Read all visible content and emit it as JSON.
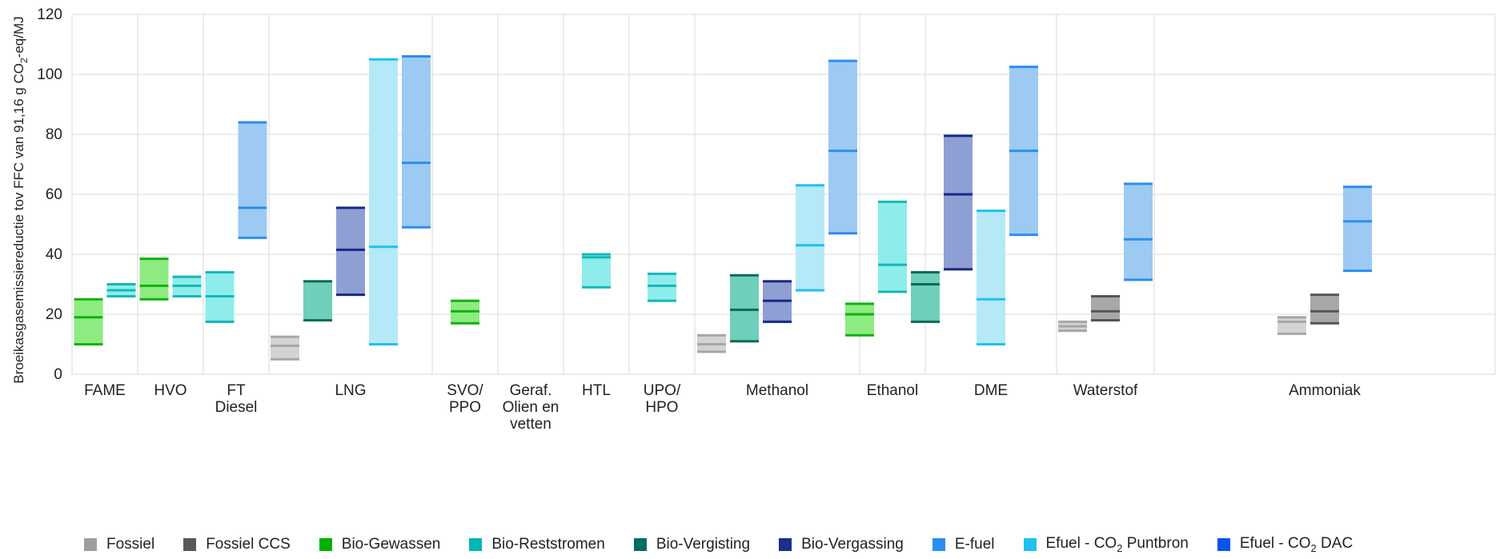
{
  "chart_data": {
    "type": "bar",
    "subtype": "floating-range-bars",
    "ylabel": "Broeikasgasemissiereductie tov FFC van 91,16 g CO2-eq/MJ",
    "ylim": [
      0,
      120
    ],
    "yticks": [
      0,
      20,
      40,
      60,
      80,
      100,
      120
    ],
    "grid": true,
    "legend_position": "bottom",
    "categories": [
      {
        "label": [
          "FAME"
        ],
        "bars": [
          {
            "series": "Bio-Gewassen",
            "min": 10,
            "mid": 19,
            "max": 25
          },
          {
            "series": "Bio-Reststromen",
            "min": 26,
            "mid": 28,
            "max": 30
          }
        ]
      },
      {
        "label": [
          "HVO"
        ],
        "bars": [
          {
            "series": "Bio-Gewassen",
            "min": 25,
            "mid": 29.5,
            "max": 38.5
          },
          {
            "series": "Bio-Reststromen",
            "min": 26,
            "mid": 29.5,
            "max": 32.5
          }
        ]
      },
      {
        "label": [
          "FT",
          "Diesel"
        ],
        "bars": [
          {
            "series": "Bio-Reststromen",
            "min": 17.5,
            "mid": 26,
            "max": 34
          },
          {
            "series": "E-fuel",
            "min": 45.5,
            "mid": 55.5,
            "max": 84
          }
        ]
      },
      {
        "label": [
          "LNG"
        ],
        "bars": [
          {
            "series": "Fossiel",
            "min": 5,
            "mid": 9.5,
            "max": 12.5
          },
          {
            "series": "Bio-Vergisting",
            "min": 18,
            "mid": null,
            "max": 31
          },
          {
            "series": "Bio-Vergassing",
            "min": 26.5,
            "mid": 41.5,
            "max": 55.5
          },
          {
            "series": "Efuel - CO2 Puntbron",
            "min": 10,
            "mid": 42.5,
            "max": 105
          },
          {
            "series": "E-fuel",
            "min": 49,
            "mid": 70.5,
            "max": 106
          }
        ]
      },
      {
        "label": [
          "SVO/",
          "PPO"
        ],
        "bars": [
          {
            "series": "Bio-Gewassen",
            "min": 17,
            "mid": 21,
            "max": 24.5
          }
        ]
      },
      {
        "label": [
          "Geraf.",
          "Olien en",
          "vetten"
        ],
        "bars": []
      },
      {
        "label": [
          "HTL"
        ],
        "bars": [
          {
            "series": "Bio-Reststromen",
            "min": 29,
            "mid": 39,
            "max": 40
          }
        ]
      },
      {
        "label": [
          "UPO/",
          "HPO"
        ],
        "bars": [
          {
            "series": "Bio-Reststromen",
            "min": 24.5,
            "mid": 29.5,
            "max": 33.5
          }
        ]
      },
      {
        "label": [
          "Methanol"
        ],
        "bars": [
          {
            "series": "Fossiel",
            "min": 7.5,
            "mid": 10,
            "max": 13
          },
          {
            "series": "Bio-Vergisting",
            "min": 11,
            "mid": 21.5,
            "max": 33
          },
          {
            "series": "Bio-Vergassing",
            "min": 17.5,
            "mid": 24.5,
            "max": 31
          },
          {
            "series": "Efuel - CO2 Puntbron",
            "min": 28,
            "mid": 43,
            "max": 63
          },
          {
            "series": "E-fuel",
            "min": 47,
            "mid": 74.5,
            "max": 104.5
          }
        ]
      },
      {
        "label": [
          "Ethanol"
        ],
        "bars": [
          {
            "series": "Bio-Gewassen",
            "min": 13,
            "mid": 20,
            "max": 23.5
          },
          {
            "series": "Bio-Reststromen",
            "min": 27.5,
            "mid": 36.5,
            "max": 57.5
          },
          {
            "series": "Bio-Vergisting",
            "min": 17.5,
            "mid": 30,
            "max": 34
          }
        ]
      },
      {
        "label": [
          "DME"
        ],
        "bars": [
          {
            "series": "Bio-Vergassing",
            "min": 35,
            "mid": 60,
            "max": 79.5
          },
          {
            "series": "Efuel - CO2 Puntbron",
            "min": 10,
            "mid": 25,
            "max": 54.5
          },
          {
            "series": "E-fuel",
            "min": 46.5,
            "mid": 74.5,
            "max": 102.5
          }
        ]
      },
      {
        "label": [
          "Waterstof"
        ],
        "bars": [
          {
            "series": "Fossiel",
            "min": 14.5,
            "mid": 16,
            "max": 17.5
          },
          {
            "series": "Fossiel CCS",
            "min": 18,
            "mid": 21,
            "max": 26
          },
          {
            "series": "E-fuel",
            "min": 31.5,
            "mid": 45,
            "max": 63.5
          }
        ]
      },
      {
        "label": [
          "Ammoniak"
        ],
        "bars": [
          {
            "series": "Fossiel",
            "min": 13.5,
            "mid": 17.5,
            "max": 19
          },
          {
            "series": "Fossiel CCS",
            "min": 17,
            "mid": 21,
            "max": 26.5
          },
          {
            "series": "E-fuel",
            "min": 34.5,
            "mid": 51,
            "max": 62.5
          }
        ]
      }
    ],
    "series": [
      {
        "name": "Fossiel",
        "color": "#9E9E9E",
        "fill": "#D3D3D3",
        "line": "#A6A6A6"
      },
      {
        "name": "Fossiel CCS",
        "color": "#595959",
        "fill": "#A8A8A8",
        "line": "#555555"
      },
      {
        "name": "Bio-Gewassen",
        "color": "#00B000",
        "fill": "#8EEB82",
        "line": "#0FB20F"
      },
      {
        "name": "Bio-Reststromen",
        "color": "#00B8B0",
        "fill": "#8EEDEB",
        "line": "#12B8B8"
      },
      {
        "name": "Bio-Vergisting",
        "color": "#006E5A",
        "fill": "#6FCFBB",
        "line": "#0B6A58"
      },
      {
        "name": "Bio-Vergassing",
        "color": "#1A2F8C",
        "fill": "#8E9FD3",
        "line": "#18268A"
      },
      {
        "name": "E-fuel",
        "color": "#2B8EEF",
        "fill": "#9DCAF2",
        "line": "#2B8EEF"
      },
      {
        "name": "Efuel - CO2 Puntbron",
        "color": "#1FC1EF",
        "fill": "#B5E9F7",
        "line": "#1FC1EF"
      },
      {
        "name": "Efuel - CO2 DAC",
        "color": "#0B53F0",
        "fill": "#8FB0F7",
        "line": "#0B53F0"
      }
    ]
  },
  "legend": {
    "items": [
      {
        "label": "Fossiel",
        "color": "#9E9E9E"
      },
      {
        "label": "Fossiel CCS",
        "color": "#595959"
      },
      {
        "label": "Bio-Gewassen",
        "color": "#00B000"
      },
      {
        "label": "Bio-Reststromen",
        "color": "#00B8B0"
      },
      {
        "label": "Bio-Vergisting",
        "color": "#006E5A"
      },
      {
        "label": "Bio-Vergassing",
        "color": "#1A2F8C"
      },
      {
        "label": "E-fuel",
        "color": "#2B8EEF"
      },
      {
        "label_prefix": "Efuel - CO",
        "label_sub": "2",
        "label_suffix": " Puntbron",
        "color": "#1FC1EF"
      },
      {
        "label_prefix": "Efuel - CO",
        "label_sub": "2",
        "label_suffix": " DAC",
        "color": "#0B53F0"
      }
    ]
  },
  "axis": {
    "ylabel_prefix": "Broeikasgasemissiereductie tov FFC van 91,16 g CO",
    "ylabel_sub": "2",
    "ylabel_suffix": "-eq/MJ"
  }
}
